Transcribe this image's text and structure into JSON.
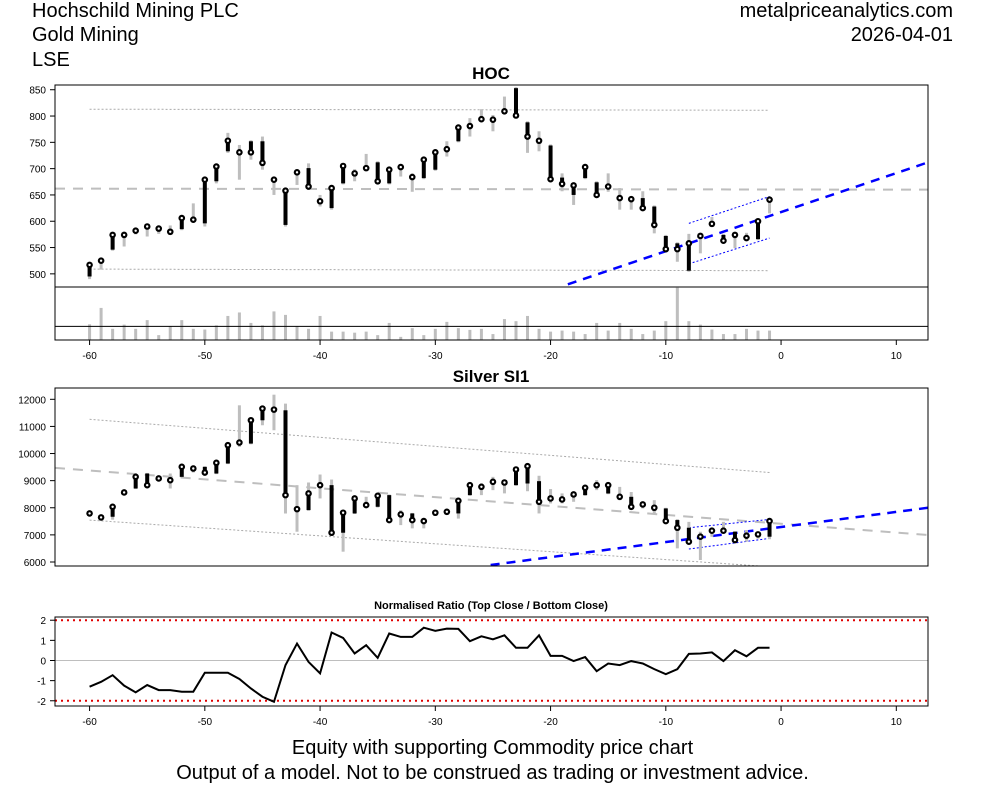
{
  "header": {
    "company": "Hochschild Mining PLC",
    "sector": "Gold Mining",
    "exchange": "LSE",
    "site": "metalpriceanalytics.com",
    "date": "2026-04-01"
  },
  "footer": {
    "line1": "Equity with supporting Commodity price chart",
    "line2": "Output of a model. Not to be construed as trading or investment advice."
  },
  "colors": {
    "candle_body": "#000000",
    "wick": "#bebebe",
    "trend": "#0000ff",
    "mean": "#bebebe",
    "band": "#e00000"
  },
  "chart_data": [
    {
      "type": "candlestick",
      "title": "HOC",
      "xlim": [
        -63,
        12.75
      ],
      "ylim": [
        475,
        859
      ],
      "xticks": [
        -60,
        -50,
        -40,
        -30,
        -20,
        -10,
        0,
        10
      ],
      "yticks": [
        500,
        550,
        600,
        650,
        700,
        750,
        800,
        850
      ],
      "ohlc_fields": [
        "open",
        "high",
        "low",
        "close"
      ],
      "days": [
        -60,
        -59,
        -58,
        -57,
        -56,
        -55,
        -54,
        -53,
        -52,
        -51,
        -50,
        -49,
        -48,
        -47,
        -46,
        -45,
        -44,
        -43,
        -42,
        -41,
        -40,
        -39,
        -38,
        -37,
        -36,
        -35,
        -34,
        -33,
        -32,
        -31,
        -30,
        -29,
        -28,
        -27,
        -26,
        -25,
        -24,
        -23,
        -22,
        -21,
        -20,
        -19,
        -18,
        -17,
        -16,
        -15,
        -14,
        -13,
        -12,
        -11,
        -10,
        -9,
        -8,
        -7,
        -6,
        -5,
        -4,
        -3,
        -2,
        -1
      ],
      "ohlc": [
        [
          495,
          520,
          490,
          517
        ],
        [
          525,
          530,
          508,
          525
        ],
        [
          546,
          576,
          544,
          574
        ],
        [
          574,
          580,
          552,
          574
        ],
        [
          582,
          586,
          575,
          582
        ],
        [
          590,
          592,
          571,
          590
        ],
        [
          586,
          590,
          576,
          586
        ],
        [
          580,
          592,
          576,
          580
        ],
        [
          585,
          608,
          583,
          606
        ],
        [
          603,
          634,
          600,
          603
        ],
        [
          596,
          681,
          590,
          679
        ],
        [
          676,
          706,
          672,
          704
        ],
        [
          733,
          768,
          730,
          753
        ],
        [
          731,
          745,
          679,
          731
        ],
        [
          752,
          754,
          717,
          731
        ],
        [
          752,
          761,
          698,
          711
        ],
        [
          679,
          682,
          650,
          679
        ],
        [
          593,
          660,
          590,
          658
        ],
        [
          693,
          695,
          669,
          693
        ],
        [
          701,
          710,
          664,
          666
        ],
        [
          638,
          650,
          628,
          638
        ],
        [
          625,
          665,
          622,
          663
        ],
        [
          672,
          707,
          670,
          705
        ],
        [
          691,
          699,
          676,
          691
        ],
        [
          701,
          728,
          698,
          701
        ],
        [
          712,
          714,
          674,
          676
        ],
        [
          672,
          700,
          670,
          698
        ],
        [
          703,
          705,
          685,
          703
        ],
        [
          684,
          691,
          656,
          684
        ],
        [
          682,
          719,
          680,
          717
        ],
        [
          698,
          733,
          696,
          731
        ],
        [
          737,
          752,
          723,
          737
        ],
        [
          752,
          780,
          750,
          778
        ],
        [
          781,
          796,
          761,
          781
        ],
        [
          794,
          813,
          790,
          794
        ],
        [
          794,
          802,
          771,
          793
        ],
        [
          809,
          837,
          805,
          809
        ],
        [
          853,
          855,
          798,
          801
        ],
        [
          788,
          790,
          730,
          761
        ],
        [
          753,
          771,
          733,
          753
        ],
        [
          744,
          746,
          678,
          680
        ],
        [
          683,
          691,
          657,
          671
        ],
        [
          650,
          670,
          631,
          668
        ],
        [
          682,
          705,
          680,
          703
        ],
        [
          674,
          676,
          648,
          650
        ],
        [
          666,
          691,
          656,
          666
        ],
        [
          644,
          663,
          622,
          644
        ],
        [
          642,
          644,
          622,
          642
        ],
        [
          644,
          657,
          623,
          625
        ],
        [
          628,
          630,
          577,
          593
        ],
        [
          572,
          574,
          545,
          547
        ],
        [
          558,
          560,
          523,
          547
        ],
        [
          506,
          576,
          504,
          558
        ],
        [
          572,
          574,
          539,
          572
        ],
        [
          595,
          608,
          593,
          595
        ],
        [
          574,
          576,
          560,
          563
        ],
        [
          574,
          576,
          549,
          574
        ],
        [
          568,
          578,
          566,
          568
        ],
        [
          566,
          602,
          564,
          600
        ],
        [
          641,
          643,
          615,
          641
        ]
      ],
      "volume_relative": [
        45,
        92,
        32,
        44,
        32,
        57,
        14,
        39,
        57,
        32,
        30,
        42,
        69,
        79,
        49,
        42,
        82,
        72,
        39,
        32,
        69,
        24,
        24,
        21,
        24,
        14,
        49,
        9,
        34,
        14,
        32,
        52,
        34,
        29,
        32,
        17,
        60,
        54,
        69,
        32,
        24,
        27,
        24,
        17,
        49,
        27,
        49,
        32,
        17,
        27,
        54,
        150,
        54,
        44,
        30,
        17,
        17,
        32,
        27,
        27
      ],
      "volume_ylim": [
        0,
        152
      ],
      "volume_reference": 39,
      "mean_line": {
        "x": [
          -63,
          12.75
        ],
        "y": [
          662,
          660
        ]
      },
      "range_upper": {
        "x": [
          -60,
          -1
        ],
        "y": [
          813,
          811
        ]
      },
      "range_lower": {
        "x": [
          -60,
          -1
        ],
        "y": [
          509,
          506
        ]
      },
      "trend_line": {
        "x": [
          -18.5,
          12.75
        ],
        "y": [
          480,
          712
        ]
      },
      "channel_upper": {
        "x": [
          -8,
          -1
        ],
        "y": [
          596,
          647
        ]
      },
      "channel_lower": {
        "x": [
          -8,
          -1
        ],
        "y": [
          519,
          568
        ]
      }
    },
    {
      "type": "candlestick",
      "title": "Silver SI1",
      "xlim": [
        -63,
        12.75
      ],
      "ylim": [
        5852,
        12417
      ],
      "xticks": [
        -60,
        -50,
        -40,
        -30,
        -20,
        -10,
        0,
        10
      ],
      "yticks": [
        6000,
        7000,
        8000,
        9000,
        10000,
        11000,
        12000
      ],
      "days": [
        -60,
        -59,
        -58,
        -57,
        -56,
        -55,
        -54,
        -53,
        -52,
        -51,
        -50,
        -49,
        -48,
        -47,
        -46,
        -45,
        -44,
        -43,
        -42,
        -41,
        -40,
        -39,
        -38,
        -37,
        -36,
        -35,
        -34,
        -33,
        -32,
        -31,
        -30,
        -29,
        -28,
        -27,
        -26,
        -25,
        -24,
        -23,
        -22,
        -21,
        -20,
        -19,
        -18,
        -17,
        -16,
        -15,
        -14,
        -13,
        -12,
        -11,
        -10,
        -9,
        -8,
        -7,
        -6,
        -5,
        -4,
        -3,
        -2,
        -1
      ],
      "ohlc": [
        [
          7791,
          7830,
          7750,
          7791
        ],
        [
          7644,
          7680,
          7610,
          7644
        ],
        [
          7668,
          8060,
          7560,
          8036
        ],
        [
          8564,
          8600,
          8520,
          8564
        ],
        [
          8711,
          9160,
          8690,
          9140
        ],
        [
          9263,
          9285,
          8810,
          8834
        ],
        [
          9080,
          9140,
          9020,
          9080
        ],
        [
          9018,
          9263,
          8711,
          9018
        ],
        [
          9140,
          9530,
          9120,
          9509
        ],
        [
          9448,
          9570,
          9300,
          9448
        ],
        [
          9509,
          9530,
          9180,
          9300
        ],
        [
          9263,
          9680,
          9240,
          9656
        ],
        [
          9632,
          10330,
          9610,
          10306
        ],
        [
          10405,
          11779,
          10245,
          10405
        ],
        [
          10368,
          11250,
          10340,
          11227
        ],
        [
          11227,
          11779,
          11043,
          11656
        ],
        [
          11619,
          12171,
          10859,
          11619
        ],
        [
          11595,
          11840,
          7790,
          8466
        ],
        [
          7950,
          8834,
          7116,
          7950
        ],
        [
          7914,
          8932,
          7890,
          8527
        ],
        [
          8834,
          9226,
          8343,
          8834
        ],
        [
          8834,
          9040,
          7060,
          7079
        ],
        [
          7079,
          7840,
          6380,
          7816
        ],
        [
          7791,
          8370,
          7770,
          8343
        ],
        [
          8098,
          8404,
          8070,
          8098
        ],
        [
          8036,
          8460,
          8010,
          8441
        ],
        [
          8466,
          8490,
          7520,
          7546
        ],
        [
          7754,
          7910,
          7360,
          7754
        ],
        [
          7791,
          7810,
          7240,
          7546
        ],
        [
          7509,
          7530,
          7240,
          7509
        ],
        [
          7816,
          7840,
          7790,
          7816
        ],
        [
          7852,
          7880,
          7830,
          7852
        ],
        [
          7791,
          8280,
          7600,
          8257
        ],
        [
          8466,
          8860,
          8440,
          8834
        ],
        [
          8773,
          8900,
          8466,
          8773
        ],
        [
          8957,
          9140,
          8650,
          8957
        ],
        [
          8932,
          9020,
          8530,
          8932
        ],
        [
          8834,
          9430,
          8810,
          9411
        ],
        [
          8895,
          9630,
          8610,
          9533
        ],
        [
          8981,
          9180,
          7790,
          8221
        ],
        [
          8343,
          8690,
          8160,
          8343
        ],
        [
          8306,
          8530,
          8160,
          8306
        ],
        [
          8490,
          8510,
          8220,
          8490
        ],
        [
          8466,
          8760,
          8440,
          8736
        ],
        [
          8834,
          9020,
          8650,
          8834
        ],
        [
          8527,
          8860,
          8500,
          8834
        ],
        [
          8404,
          8770,
          8280,
          8404
        ],
        [
          8404,
          8580,
          8010,
          8036
        ],
        [
          8122,
          8150,
          7975,
          8122
        ],
        [
          8000,
          8280,
          7790,
          8000
        ],
        [
          7975,
          8000,
          7480,
          7509
        ],
        [
          7546,
          7580,
          6503,
          7263
        ],
        [
          7263,
          7480,
          6720,
          6748
        ],
        [
          6932,
          7116,
          6073,
          6932
        ],
        [
          7153,
          7180,
          6930,
          7153
        ],
        [
          7153,
          7480,
          7050,
          7153
        ],
        [
          7116,
          7140,
          6780,
          6809
        ],
        [
          6969,
          7180,
          6750,
          6969
        ],
        [
          7018,
          7040,
          6860,
          7018
        ],
        [
          6932,
          7530,
          6840,
          7509
        ]
      ],
      "mean_line": {
        "x": [
          -63,
          12.75
        ],
        "y": [
          9472,
          6994
        ]
      },
      "range_upper": {
        "x": [
          -60,
          -1
        ],
        "y": [
          11263,
          9300
        ]
      },
      "range_lower": {
        "x": [
          -60,
          -1
        ],
        "y": [
          7546,
          5827
        ]
      },
      "trend_line": {
        "x": [
          -25.2,
          12.75
        ],
        "y": [
          5889,
          8000
        ]
      },
      "channel_upper": {
        "x": [
          -8,
          -1
        ],
        "y": [
          7263,
          7570
        ]
      },
      "channel_lower": {
        "x": [
          -8,
          -1
        ],
        "y": [
          6478,
          6871
        ]
      }
    },
    {
      "type": "line",
      "title": "Normalised Ratio (Top Close / Bottom Close)",
      "xlim": [
        -63,
        12.75
      ],
      "ylim": [
        -2.26,
        2.16
      ],
      "xticks": [
        -60,
        -50,
        -40,
        -30,
        -20,
        -10,
        0,
        10
      ],
      "yticks": [
        -2,
        -1,
        0,
        1,
        2
      ],
      "bands": [
        2,
        -2
      ],
      "zero_line": 0,
      "x": [
        -60,
        -59,
        -58,
        -57,
        -56,
        -55,
        -54,
        -53,
        -52,
        -51,
        -50,
        -49,
        -48,
        -47,
        -46,
        -45,
        -44,
        -43,
        -42,
        -41,
        -40,
        -39,
        -38,
        -37,
        -36,
        -35,
        -34,
        -33,
        -32,
        -31,
        -30,
        -29,
        -28,
        -27,
        -26,
        -25,
        -24,
        -23,
        -22,
        -21,
        -20,
        -19,
        -18,
        -17,
        -16,
        -15,
        -14,
        -13,
        -12,
        -11,
        -10,
        -9,
        -8,
        -7,
        -6,
        -5,
        -4,
        -3,
        -2,
        -1
      ],
      "y": [
        -1.3,
        -1.06,
        -0.73,
        -1.25,
        -1.58,
        -1.22,
        -1.47,
        -1.47,
        -1.55,
        -1.55,
        -0.61,
        -0.61,
        -0.61,
        -0.92,
        -1.39,
        -1.8,
        -2.05,
        -0.23,
        0.84,
        -0.07,
        -0.64,
        1.39,
        1.12,
        0.35,
        0.76,
        0.13,
        1.34,
        1.17,
        1.17,
        1.63,
        1.47,
        1.58,
        1.57,
        0.96,
        1.2,
        1.05,
        1.25,
        0.63,
        0.63,
        1.25,
        0.23,
        0.23,
        -0.03,
        0.17,
        -0.53,
        -0.15,
        -0.23,
        -0.03,
        -0.15,
        -0.43,
        -0.68,
        -0.43,
        0.33,
        0.35,
        0.4,
        -0.03,
        0.51,
        0.21,
        0.63,
        0.63
      ]
    }
  ]
}
